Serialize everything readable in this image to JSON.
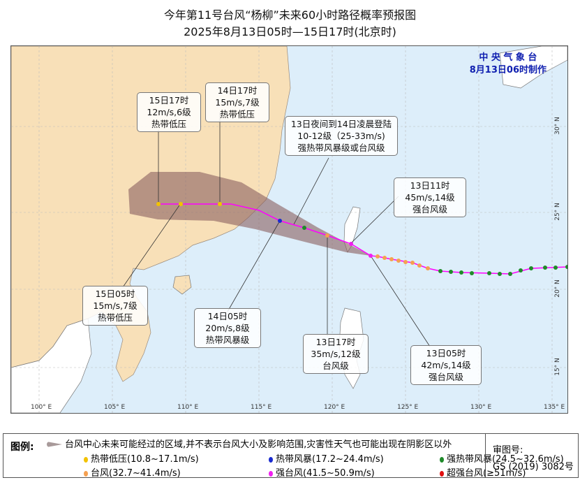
{
  "title": {
    "line1": "今年第11号台风“杨柳”未来60小时路径概率预报图",
    "line2": "2025年8月13日05时—15日17时(北京时)"
  },
  "issuer": {
    "name": "中 央 气 象 台",
    "time": "8月13日06时制作"
  },
  "axes": {
    "lon": [
      "100° E",
      "105° E",
      "110° E",
      "115° E",
      "120° E",
      "125° E",
      "130° E",
      "135° E"
    ],
    "lat": [
      "30° N",
      "25° N",
      "20° N",
      "15° N"
    ]
  },
  "annotations": [
    {
      "time": "15日17时",
      "wind": "12m/s,6级",
      "level": "热带低压"
    },
    {
      "time": "14日17时",
      "wind": "15m/s,7级",
      "level": "热带低压"
    },
    {
      "time": "13日夜间到14日凌晨登陆",
      "wind": "10-12级（25-33m/s)",
      "level": "强热带风暴级或台风级"
    },
    {
      "time": "13日11时",
      "wind": "45m/s,14级",
      "level": "强台风级"
    },
    {
      "time": "15日05时",
      "wind": "15m/s,7级",
      "level": "热带低压"
    },
    {
      "time": "14日05时",
      "wind": "20m/s,8级",
      "level": "热带风暴级"
    },
    {
      "time": "13日17时",
      "wind": "35m/s,12级",
      "level": "台风级"
    },
    {
      "time": "13日05时",
      "wind": "42m/s,14级",
      "level": "强台风级"
    }
  ],
  "legend": {
    "title": "图例:",
    "cone": "台风中心未来可能经过的区域,并不表示台风大小及影响范围,灾害性天气也可能出现在阴影区以外",
    "items": [
      {
        "label": "热带低压(10.8~17.1m/s)",
        "color": "#f2c200"
      },
      {
        "label": "热带风暴(17.2~24.4m/s)",
        "color": "#1a2bd0"
      },
      {
        "label": "强热带风暴(24.5~32.6m/s)",
        "color": "#1f8a2a"
      },
      {
        "label": "台风(32.7~41.4m/s)",
        "color": "#f5a050"
      },
      {
        "label": "强台风(41.5~50.9m/s)",
        "color": "#f020f0"
      },
      {
        "label": "超强台风(≥51m/s)",
        "color": "#e01010"
      }
    ]
  },
  "approval": {
    "label": "审图号:",
    "number": "GS (2019) 3082号"
  },
  "colors": {
    "land": "#f8e0b8",
    "sea": "#ddeefa",
    "cone": "#8a5f5f",
    "track": "#ff00ff"
  }
}
